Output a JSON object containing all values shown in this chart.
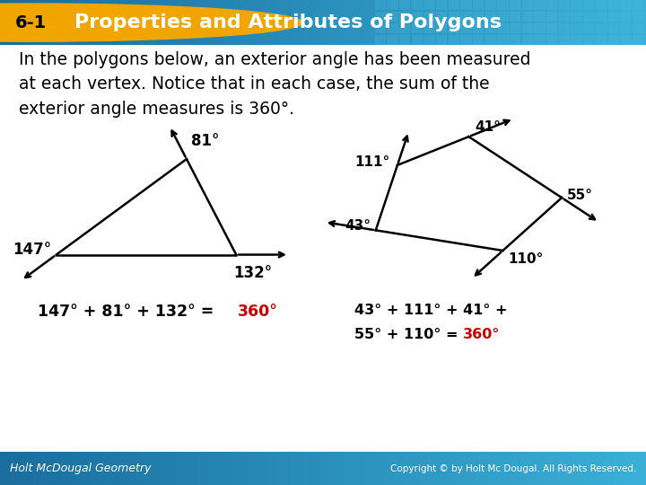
{
  "title_bg_left": "#1a6e9e",
  "title_bg_right": "#3ab0d8",
  "badge_color": "#f0a500",
  "badge_text": "6-1",
  "title_text": "Properties and Attributes of Polygons",
  "title_text_color": "#ffffff",
  "body_bg": "#ffffff",
  "footer_bg_left": "#1a6e9e",
  "footer_bg_right": "#3ab0d8",
  "footer_left": "Holt McDougal Geometry",
  "footer_right": "Copyright © by Holt Mc Dougal. All Rights Reserved.",
  "footer_text_color": "#ffffff",
  "description": "In the polygons below, an exterior angle has been measured\nat each vertex. Notice that in each case, the sum of the\nexterior angle measures is 360°.",
  "desc_fontsize": 13.5,
  "tri_angle1_label": "147°",
  "tri_angle2_label": "81°",
  "tri_angle3_label": "132°",
  "tri_eq_black": "147° + 81° + 132° = ",
  "tri_eq_red": "360°",
  "quad_angle1_label": "111°",
  "quad_angle2_label": "41°",
  "quad_angle3_label": "43°",
  "quad_angle4_label": "55°",
  "quad_angle5_label": "110°",
  "quad_eq_black1": "43° + 111° + 41° +",
  "quad_eq_black2": "55° + 110° = ",
  "quad_eq_red": "360°",
  "highlight_color": "#cc0000",
  "line_color": "#000000",
  "lw": 1.8,
  "arrow_scale": 10
}
